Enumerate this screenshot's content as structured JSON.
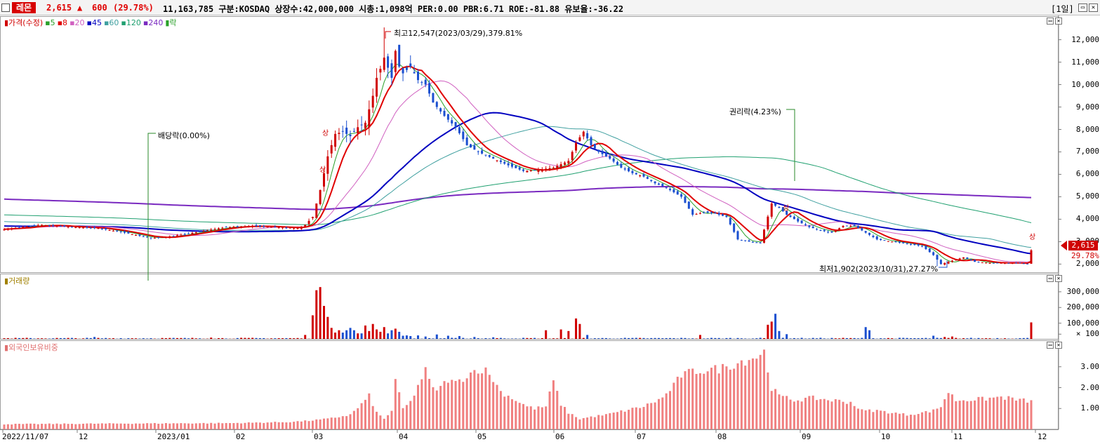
{
  "header": {
    "name": "레몬",
    "price": "2,615",
    "arrow": "🠅",
    "change": "600",
    "change_rate": "(29.78%)",
    "info": "11,163,785  구분:KOSDAQ 상장수:42,000,000 시총:1,098억 PER:0.00 PBR:6.71 ROE:-81.88 유보율:-36.22",
    "period": "[1일]"
  },
  "price_panel": {
    "legend": [
      {
        "text": "가격(수정)",
        "color": "#d00000",
        "marker": "▮"
      },
      {
        "text": "5",
        "color": "#2aa02a"
      },
      {
        "text": "8",
        "color": "#e00000"
      },
      {
        "text": "20",
        "color": "#d060c0"
      },
      {
        "text": "45",
        "color": "#0000c0"
      },
      {
        "text": "60",
        "color": "#40a0a0"
      },
      {
        "text": "120",
        "color": "#20a070"
      },
      {
        "text": "240",
        "color": "#7a2ac0"
      },
      {
        "text": "락",
        "color": "#2aa02a",
        "marker": "▮"
      }
    ],
    "high_annotation": "최고12,547(2023/03/29),379.81%",
    "low_annotation": "최저1,902(2023/10/31),27.27%",
    "dividend_annotation": "배당락(0.00%)",
    "rights_annotation": "권리락(4.23%)",
    "limit_tag": "상",
    "current_price": "2,615",
    "current_rate": "29.78%",
    "yticks": [
      "12,000",
      "11,000",
      "10,000",
      "9,000",
      "8,000",
      "7,000",
      "6,000",
      "5,000",
      "4,000",
      "3,000",
      "2,000"
    ]
  },
  "volume_panel": {
    "legend": "거래량",
    "yticks": [
      "300,000",
      "200,000",
      "100,000",
      "× 100"
    ]
  },
  "foreign_panel": {
    "legend": "외국인보유비중",
    "yticks": [
      "3.00",
      "2.00",
      "1.00"
    ]
  },
  "xaxis": {
    "labels": [
      "2022/11/07",
      "12",
      "2023/01",
      "02",
      "03",
      "04",
      "05",
      "06",
      "07",
      "08",
      "09",
      "10",
      "11",
      "12"
    ]
  },
  "colors": {
    "up": "#d00000",
    "down": "#1a4fd0",
    "foreign": "#f08080"
  },
  "chart_data": [
    {
      "type": "candlestick",
      "title": "가격(수정)",
      "x_range": [
        "2022/11/07",
        "2023/12"
      ],
      "ylim": [
        1700,
        12800
      ],
      "key_points": [
        {
          "date": "2022/11/07",
          "close": 3550
        },
        {
          "date": "2022/12",
          "close": 3650
        },
        {
          "date": "2023/01",
          "close": 3200
        },
        {
          "date": "2023/02",
          "close": 3650
        },
        {
          "date": "2023/03",
          "close": 3800
        },
        {
          "date": "2023/03/29",
          "high": 12547
        },
        {
          "date": "2023/04",
          "close": 9500
        },
        {
          "date": "2023/05",
          "close": 6500
        },
        {
          "date": "2023/06",
          "close": 6300
        },
        {
          "date": "2023/07",
          "close": 5800
        },
        {
          "date": "2023/08",
          "close": 4300
        },
        {
          "date": "2023/09",
          "close": 4200
        },
        {
          "date": "2023/10",
          "close": 3400
        },
        {
          "date": "2023/10/31",
          "low": 1902
        },
        {
          "date": "2023/11",
          "close": 2050
        },
        {
          "date": "2023/12",
          "close": 2615
        }
      ],
      "moving_averages": [
        "5",
        "8",
        "20",
        "45",
        "60",
        "120",
        "240"
      ]
    },
    {
      "type": "bar",
      "title": "거래량",
      "unit": "× 100",
      "ylim": [
        0,
        380000
      ],
      "peak_values": [
        {
          "date": "2023/03",
          "value": 330000
        },
        {
          "date": "2023/08",
          "value": 160000
        },
        {
          "date": "2023/12",
          "value": 105000
        }
      ]
    },
    {
      "type": "bar",
      "title": "외국인보유비중",
      "ylim": [
        0,
        4.0
      ],
      "key_points": [
        {
          "date": "2022/11/07",
          "value": 0.25
        },
        {
          "date": "2023/03",
          "value": 0.4
        },
        {
          "date": "2023/04",
          "value": 2.3
        },
        {
          "date": "2023/05",
          "value": 2.9
        },
        {
          "date": "2023/06",
          "value": 1.6
        },
        {
          "date": "2023/07",
          "value": 0.8
        },
        {
          "date": "2023/08",
          "value": 3.7
        },
        {
          "date": "2023/09",
          "value": 1.4
        },
        {
          "date": "2023/10",
          "value": 0.8
        },
        {
          "date": "2023/11",
          "value": 1.6
        },
        {
          "date": "2023/12",
          "value": 1.35
        }
      ]
    }
  ]
}
